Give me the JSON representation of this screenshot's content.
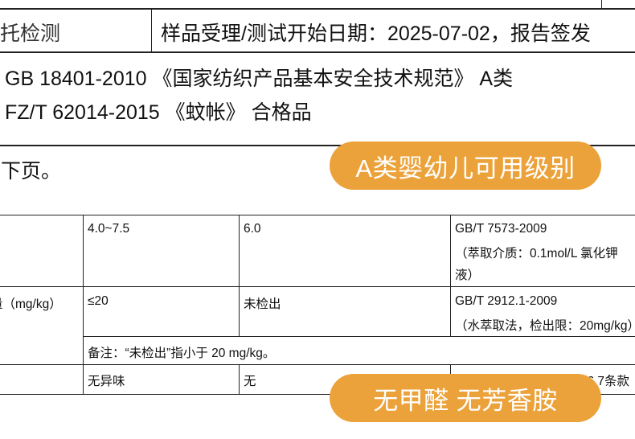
{
  "header": {
    "test_type": "委托检测",
    "date_text": "样品受理/测试开始日期：2025-07-02，报告签发"
  },
  "standards": [
    "GB 18401-2010 《国家纺织产品基本安全技术规范》 A类",
    "FZ/T 62014-2015 《蚊帐》 合格品"
  ],
  "see_next_page": "见下页。",
  "table": {
    "rows": [
      {
        "item": "",
        "requirement": "4.0~7.5",
        "result": "6.0",
        "method": [
          "GB/T 7573-2009",
          "（萃取介质：0.1mol/L 氯化钾",
          "液）"
        ]
      },
      {
        "item": "量（mg/kg）",
        "requirement": "≤20",
        "result": "未检出",
        "method": [
          "GB/T 2912.1-2009",
          "（水萃取法，检出限：20mg/kg）"
        ]
      },
      {
        "note": "备注：“未检出”指小于 20 mg/kg。"
      },
      {
        "item": "",
        "requirement": "无异味",
        "result": "无",
        "method": [
          "第6.7条款"
        ]
      }
    ]
  },
  "badges": {
    "grade": "A类婴幼儿可用级别",
    "safety": "无甲醛 无芳香胺",
    "color": "#ECA23A"
  }
}
